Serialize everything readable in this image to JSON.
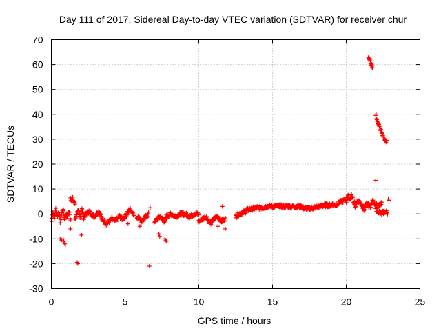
{
  "chart_data": {
    "type": "scatter",
    "title": "Day 111 of 2017, Sidereal Day-to-day VTEC variation (SDTVAR) for receiver chur",
    "xlabel": "GPS time / hours",
    "ylabel": "SDTVAR / TECUs",
    "xlim": [
      0,
      25
    ],
    "ylim": [
      -30,
      70
    ],
    "xticks": [
      0,
      5,
      10,
      15,
      20,
      25
    ],
    "yticks": [
      -30,
      -20,
      -10,
      0,
      10,
      20,
      30,
      40,
      50,
      60,
      70
    ],
    "grid": true,
    "marker": "+",
    "color": "#ff0000",
    "series": [
      {
        "name": "SDTVAR",
        "segments": [
          {
            "x0": 0.0,
            "x1": 0.9,
            "y": [
              -3,
              1,
              -2,
              2,
              -1,
              1,
              -3,
              0,
              2,
              -2
            ]
          },
          {
            "x0": 0.9,
            "x1": 1.3,
            "y": [
              -2,
              0,
              -1,
              1,
              -2
            ]
          },
          {
            "x0": 1.3,
            "x1": 1.6,
            "y": [
              6.5,
              5.5,
              6,
              5,
              4
            ]
          },
          {
            "x0": 1.6,
            "x1": 2.2,
            "y": [
              -2,
              0,
              1,
              -1,
              2,
              -2
            ]
          },
          {
            "x0": 2.2,
            "x1": 3.4,
            "y": [
              -1,
              0,
              1,
              0,
              -1,
              0,
              1,
              -1
            ]
          },
          {
            "x0": 3.4,
            "x1": 5.0,
            "y": [
              -2,
              -3,
              -4,
              -3,
              -2,
              -3,
              -2,
              -1,
              -2,
              -1
            ]
          },
          {
            "x0": 5.0,
            "x1": 5.6,
            "y": [
              -1,
              0,
              2,
              1,
              0
            ]
          },
          {
            "x0": 5.8,
            "x1": 6.6,
            "y": [
              -2,
              -1,
              -3,
              -2,
              -1,
              0
            ]
          },
          {
            "x0": 7.0,
            "x1": 7.8,
            "y": [
              -3,
              -2,
              -1,
              -3,
              -2
            ]
          },
          {
            "x0": 7.8,
            "x1": 10.0,
            "y": [
              -1,
              0,
              -1,
              0,
              0,
              -1,
              0,
              0
            ]
          },
          {
            "x0": 10.0,
            "x1": 11.8,
            "y": [
              -3,
              -2,
              -1,
              -4,
              -2,
              -1,
              -3,
              -2
            ]
          },
          {
            "x0": 12.5,
            "x1": 13.2,
            "y": [
              -1,
              0,
              0.5,
              1
            ]
          },
          {
            "x0": 13.2,
            "x1": 15.0,
            "y": [
              1.5,
              2,
              2.5,
              2.5,
              3,
              3
            ]
          },
          {
            "x0": 15.0,
            "x1": 17.0,
            "y": [
              3,
              3,
              3,
              3,
              3,
              3
            ]
          },
          {
            "x0": 17.0,
            "x1": 19.0,
            "y": [
              2.5,
              2,
              2.5,
              3,
              3.5,
              3.5
            ]
          },
          {
            "x0": 19.0,
            "x1": 20.0,
            "y": [
              4,
              3.5,
              4.5,
              5,
              6
            ]
          },
          {
            "x0": 20.0,
            "x1": 20.6,
            "y": [
              5,
              7,
              6,
              8,
              4,
              5
            ]
          },
          {
            "x0": 20.6,
            "x1": 21.4,
            "y": [
              3,
              5,
              4,
              2,
              4
            ]
          },
          {
            "x0": 21.4,
            "x1": 22.4,
            "y": [
              4,
              3,
              5,
              4,
              3,
              4
            ]
          },
          {
            "x0": 22.0,
            "x1": 22.8,
            "y": [
              2,
              1,
              0,
              1,
              0.5
            ]
          },
          {
            "x0": 21.5,
            "x1": 21.8,
            "y": [
              63,
              62,
              61,
              60,
              59
            ]
          },
          {
            "x0": 22.0,
            "x1": 22.75,
            "y": [
              40,
              37,
              35,
              33,
              31,
              29.5,
              29
            ]
          }
        ],
        "points": [
          {
            "x": 0.6,
            "y": -10
          },
          {
            "x": 0.7,
            "y": -10.5
          },
          {
            "x": 0.8,
            "y": -10
          },
          {
            "x": 0.85,
            "y": -11
          },
          {
            "x": 0.9,
            "y": -12
          },
          {
            "x": 0.95,
            "y": -12.5
          },
          {
            "x": 1.3,
            "y": -6
          },
          {
            "x": 1.75,
            "y": -19.5
          },
          {
            "x": 1.8,
            "y": -20
          },
          {
            "x": 2.05,
            "y": -8.5
          },
          {
            "x": 6.65,
            "y": -21
          },
          {
            "x": 6.7,
            "y": 2.5
          },
          {
            "x": 7.3,
            "y": -8
          },
          {
            "x": 7.35,
            "y": -9
          },
          {
            "x": 7.7,
            "y": -10
          },
          {
            "x": 7.8,
            "y": -11
          },
          {
            "x": 7.75,
            "y": -10.5
          },
          {
            "x": 6.0,
            "y": -5
          },
          {
            "x": 5.2,
            "y": -4
          },
          {
            "x": 11.8,
            "y": -6
          },
          {
            "x": 11.6,
            "y": 3
          },
          {
            "x": 11.3,
            "y": -5
          },
          {
            "x": 22.0,
            "y": 13.5
          },
          {
            "x": 22.9,
            "y": 5.5
          },
          {
            "x": 22.85,
            "y": 6
          }
        ]
      }
    ]
  }
}
